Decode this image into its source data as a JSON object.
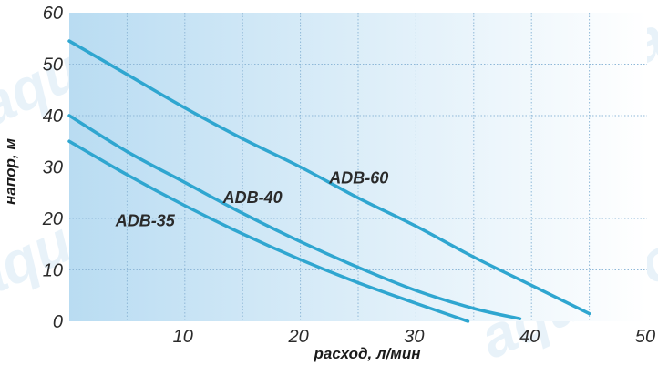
{
  "chart_data": {
    "type": "line",
    "xlabel": "расход, л/мин",
    "ylabel": "напор, м",
    "xlim": [
      0,
      50
    ],
    "ylim": [
      0,
      60
    ],
    "x_ticks": [
      "10",
      "20",
      "30",
      "40",
      "50"
    ],
    "y_ticks": [
      "0",
      "10",
      "20",
      "30",
      "40",
      "50",
      "60"
    ],
    "grid": true,
    "legend": "inline",
    "colors": {
      "line": "#2fa6d0",
      "plot_bg_left": "#b9dcf2",
      "plot_bg_right": "#ffffff",
      "grid": "#8fb8d8",
      "watermark": "#d6e9f5"
    },
    "series": [
      {
        "name": "ADB-35",
        "x": [
          0,
          5,
          10,
          15,
          20,
          25,
          30,
          34.5
        ],
        "y": [
          35,
          28.5,
          22.5,
          17,
          12,
          7.5,
          3.5,
          0
        ]
      },
      {
        "name": "ADB-40",
        "x": [
          0,
          5,
          10,
          15,
          20,
          25,
          30,
          35,
          39
        ],
        "y": [
          40,
          33,
          27,
          21,
          15.5,
          10.5,
          6,
          2.5,
          0.5
        ]
      },
      {
        "name": "ADB-60",
        "x": [
          0,
          5,
          10,
          15,
          20,
          25,
          30,
          35,
          40,
          45
        ],
        "y": [
          54.5,
          48,
          41.5,
          35.5,
          30,
          24,
          18.5,
          12.5,
          7,
          1.5
        ]
      }
    ],
    "series_labels": [
      {
        "series": "ADB-35",
        "x": 4,
        "y": 18.5
      },
      {
        "series": "ADB-40",
        "x": 13.3,
        "y": 23
      },
      {
        "series": "ADB-60",
        "x": 22.5,
        "y": 26.8
      }
    ],
    "watermark_text": [
      "aquario",
      "aquario",
      "aquario",
      "aquario"
    ]
  }
}
